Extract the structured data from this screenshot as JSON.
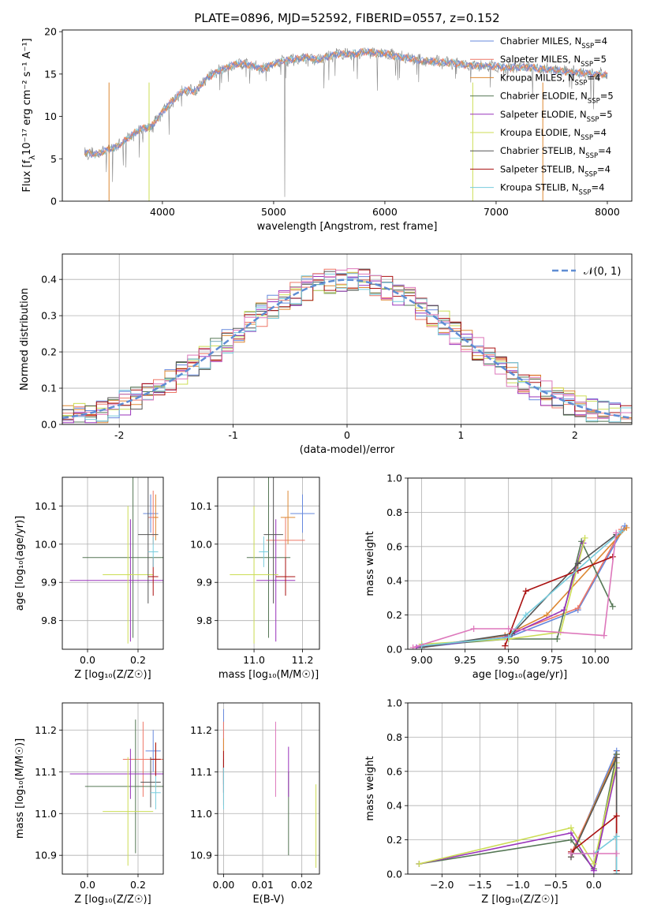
{
  "figure_title": "PLATE=0896, MJD=52592, FIBERID=0557, z=0.152",
  "models": [
    {
      "name": "Chabrier MILES, N",
      "sub": "SSP",
      "tail": "=4",
      "color": "#6688dd"
    },
    {
      "name": "Salpeter MILES, N",
      "sub": "SSP",
      "tail": "=5",
      "color": "#ee7766"
    },
    {
      "name": "Kroupa MILES, N",
      "sub": "SSP",
      "tail": "=4",
      "color": "#dd8833"
    },
    {
      "name": "Chabrier ELODIE, N",
      "sub": "SSP",
      "tail": "=5",
      "color": "#557755"
    },
    {
      "name": "Salpeter ELODIE, N",
      "sub": "SSP",
      "tail": "=5",
      "color": "#9933bb"
    },
    {
      "name": "Kroupa ELODIE, N",
      "sub": "SSP",
      "tail": "=4",
      "color": "#ccdd55"
    },
    {
      "name": "Chabrier STELIB, N",
      "sub": "SSP",
      "tail": "=4",
      "color": "#555555"
    },
    {
      "name": "Salpeter STELIB, N",
      "sub": "SSP",
      "tail": "=4",
      "color": "#aa1111"
    },
    {
      "name": "Kroupa STELIB, N",
      "sub": "SSP",
      "tail": "=4",
      "color": "#77ccdd"
    }
  ],
  "chart_data": [
    {
      "id": "spectrum",
      "type": "line",
      "xlabel": "wavelength [Angstrom, rest frame]",
      "ylabel_main": "Flux [f",
      "ylabel_sub": "λ",
      "ylabel_rest": "10⁻¹⁷ erg cm⁻² s⁻¹ A⁻¹]",
      "xlim": [
        3100,
        8220
      ],
      "ylim": [
        0,
        20.2
      ],
      "xticks": [
        4000,
        5000,
        6000,
        7000,
        8000
      ],
      "yticks": [
        0,
        5,
        10,
        15,
        20
      ],
      "continuum_x": [
        3300,
        3400,
        3500,
        3600,
        3700,
        3800,
        3900,
        4000,
        4100,
        4200,
        4300,
        4400,
        4500,
        4600,
        4700,
        4800,
        4900,
        5000,
        5100,
        5200,
        5300,
        5400,
        5500,
        5600,
        5700,
        5800,
        5900,
        6000,
        6100,
        6200,
        6300,
        6400,
        6500,
        6600,
        6700,
        6800,
        6900,
        7000,
        7100,
        7200,
        7300,
        7400,
        7500,
        7600,
        7700,
        7800,
        7900,
        8000
      ],
      "continuum_y": [
        5.8,
        5.5,
        6.0,
        6.5,
        7.5,
        8.5,
        8.8,
        10.5,
        12.0,
        13.2,
        13.0,
        14.5,
        15.3,
        15.9,
        16.3,
        16.0,
        15.6,
        16.2,
        16.6,
        16.8,
        17.0,
        16.6,
        17.1,
        17.4,
        17.3,
        17.6,
        17.5,
        17.4,
        17.1,
        16.9,
        16.6,
        16.5,
        16.4,
        16.3,
        16.1,
        16.0,
        16.0,
        15.9,
        15.7,
        15.8,
        15.8,
        15.6,
        15.5,
        15.3,
        15.2,
        15.1,
        15.0,
        14.9
      ]
    },
    {
      "id": "residual_hist",
      "type": "bar",
      "xlabel": "(data-model)/error",
      "ylabel": "Normed distribution",
      "xlim": [
        -2.5,
        2.5
      ],
      "ylim": [
        0,
        0.47
      ],
      "xticks": [
        -2,
        -1,
        0,
        1,
        2
      ],
      "yticks": [
        0.0,
        0.1,
        0.2,
        0.3,
        0.4
      ],
      "bin_width": 0.1,
      "legend_label": "𝒩(0, 1)",
      "gaussian_color": "#5f8dd3"
    },
    {
      "id": "age_vs_Z",
      "type": "scatter",
      "xlabel": "Z [log₁₀(Z/Z☉)]",
      "ylabel": "age  [log₁₀(age/yr)]",
      "xlim": [
        -0.1,
        0.3
      ],
      "ylim": [
        9.725,
        10.175
      ],
      "xticks": [
        0.0,
        0.2
      ],
      "yticks": [
        9.8,
        9.9,
        10.0,
        10.1
      ],
      "points": [
        {
          "x": 0.25,
          "y": 10.08,
          "xe": 0.03,
          "ye": 0.05
        },
        {
          "x": 0.26,
          "y": 10.07,
          "xe": 0.02,
          "ye": 0.07
        },
        {
          "x": 0.27,
          "y": 10.07,
          "xe": 0.01,
          "ye": 0.06
        },
        {
          "x": 0.18,
          "y": 9.965,
          "xe": 0.2,
          "ye": 0.21
        },
        {
          "x": 0.17,
          "y": 9.905,
          "xe": 0.24,
          "ye": 0.16
        },
        {
          "x": 0.16,
          "y": 9.92,
          "xe": 0.1,
          "ye": 0.18
        },
        {
          "x": 0.24,
          "y": 10.025,
          "xe": 0.04,
          "ye": 0.18
        },
        {
          "x": 0.26,
          "y": 9.915,
          "xe": 0.02,
          "ye": 0.05
        },
        {
          "x": 0.26,
          "y": 9.98,
          "xe": 0.02,
          "ye": 0.04
        }
      ]
    },
    {
      "id": "age_vs_mass",
      "type": "scatter",
      "xlabel": "mass [log₁₀(M/M☉)]",
      "ylabel": "",
      "xlim": [
        10.85,
        11.27
      ],
      "ylim": [
        9.725,
        10.175
      ],
      "xticks": [
        11.0,
        11.2
      ],
      "yticks": [
        9.8,
        9.9,
        10.0,
        10.1
      ],
      "points": [
        {
          "x": 11.2,
          "y": 10.08,
          "xe": 0.05,
          "ye": 0.05
        },
        {
          "x": 11.13,
          "y": 10.01,
          "xe": 0.08,
          "ye": 0.06
        },
        {
          "x": 11.14,
          "y": 10.07,
          "xe": 0.03,
          "ye": 0.07
        },
        {
          "x": 11.06,
          "y": 9.965,
          "xe": 0.09,
          "ye": 0.21
        },
        {
          "x": 11.09,
          "y": 9.905,
          "xe": 0.08,
          "ye": 0.16
        },
        {
          "x": 11.0,
          "y": 9.92,
          "xe": 0.1,
          "ye": 0.18
        },
        {
          "x": 11.08,
          "y": 10.025,
          "xe": 0.04,
          "ye": 0.18
        },
        {
          "x": 11.13,
          "y": 9.915,
          "xe": 0.04,
          "ye": 0.05
        },
        {
          "x": 11.04,
          "y": 9.98,
          "xe": 0.02,
          "ye": 0.04
        }
      ]
    },
    {
      "id": "weight_vs_age",
      "type": "line",
      "xlabel": "age  [log₁₀(age/yr)]",
      "ylabel": "mass weight",
      "xlim": [
        8.92,
        10.21
      ],
      "ylim": [
        0,
        1.0
      ],
      "xticks": [
        9.0,
        9.25,
        9.5,
        9.75,
        10.0
      ],
      "yticks": [
        0.0,
        0.2,
        0.4,
        0.6,
        0.8,
        1.0
      ],
      "series": [
        {
          "x": [
            9.0,
            9.5,
            9.9,
            10.17
          ],
          "y": [
            0.01,
            0.07,
            0.23,
            0.72
          ]
        },
        {
          "x": [
            9.0,
            9.48,
            9.9,
            10.15
          ],
          "y": [
            0.01,
            0.08,
            0.24,
            0.7
          ]
        },
        {
          "x": [
            9.0,
            9.48,
            9.72,
            10.18
          ],
          "y": [
            0.01,
            0.08,
            0.2,
            0.71
          ]
        },
        {
          "x": [
            9.0,
            9.5,
            9.78,
            9.92,
            10.1
          ],
          "y": [
            0.02,
            0.06,
            0.06,
            0.63,
            0.25
          ]
        },
        {
          "x": [
            8.97,
            9.48,
            9.82,
            9.93
          ],
          "y": [
            0.01,
            0.07,
            0.23,
            0.62
          ]
        },
        {
          "x": [
            9.0,
            9.5,
            9.8,
            9.94
          ],
          "y": [
            0.03,
            0.06,
            0.1,
            0.65
          ]
        },
        {
          "x": [
            9.0,
            9.52,
            9.9,
            10.12
          ],
          "y": [
            0.01,
            0.09,
            0.5,
            0.67
          ]
        },
        {
          "x": [
            9.48,
            9.6,
            9.9,
            10.1
          ],
          "y": [
            0.02,
            0.34,
            0.46,
            0.54
          ]
        },
        {
          "x": [
            9.0,
            9.5,
            9.6,
            10.15
          ],
          "y": [
            0.02,
            0.07,
            0.2,
            0.69
          ]
        },
        {
          "x": [
            8.95,
            9.3,
            9.5,
            10.05,
            10.12
          ],
          "y": [
            0.01,
            0.12,
            0.12,
            0.08,
            0.68
          ]
        }
      ]
    },
    {
      "id": "mass_vs_Z",
      "type": "scatter",
      "xlabel": "Z [log₁₀(Z/Z☉)]",
      "ylabel": "mass [log₁₀(M/M☉)]",
      "xlim": [
        -0.1,
        0.3
      ],
      "ylim": [
        10.855,
        11.265
      ],
      "xticks": [
        0.0,
        0.2
      ],
      "yticks": [
        10.9,
        11.0,
        11.1,
        11.2
      ],
      "points": [
        {
          "x": 0.26,
          "y": 11.15,
          "xe": 0.03,
          "ye": 0.05
        },
        {
          "x": 0.22,
          "y": 11.13,
          "xe": 0.08,
          "ye": 0.09
        },
        {
          "x": 0.27,
          "y": 11.13,
          "xe": 0.02,
          "ye": 0.04
        },
        {
          "x": 0.19,
          "y": 11.065,
          "xe": 0.2,
          "ye": 0.16
        },
        {
          "x": 0.17,
          "y": 11.095,
          "xe": 0.24,
          "ye": 0.06
        },
        {
          "x": 0.16,
          "y": 11.005,
          "xe": 0.1,
          "ye": 0.13
        },
        {
          "x": 0.25,
          "y": 11.075,
          "xe": 0.04,
          "ye": 0.06
        },
        {
          "x": 0.27,
          "y": 11.13,
          "xe": 0.02,
          "ye": 0.04
        },
        {
          "x": 0.27,
          "y": 11.05,
          "xe": 0.02,
          "ye": 0.04
        }
      ]
    },
    {
      "id": "mass_vs_ebv",
      "type": "scatter",
      "xlabel": "E(B-V)",
      "ylabel": "",
      "xlim": [
        -0.0015,
        0.0245
      ],
      "ylim": [
        10.855,
        11.265
      ],
      "xticks": [
        0.0,
        0.01,
        0.02
      ],
      "yticks": [
        10.9,
        11.0,
        11.1,
        11.2
      ],
      "points": [
        {
          "x": 0.0,
          "y": 11.15,
          "xe": 0,
          "ye": 0.1
        },
        {
          "x": 0.0,
          "y": 11.12,
          "xe": 0,
          "ye": 0.1
        },
        {
          "x": 0.0,
          "y": 11.13,
          "xe": 0,
          "ye": 0.05
        },
        {
          "x": 0.0166,
          "y": 11.0,
          "xe": 0,
          "ye": 0.1
        },
        {
          "x": 0.0166,
          "y": 11.1,
          "xe": 0,
          "ye": 0.06
        },
        {
          "x": 0.0236,
          "y": 10.97,
          "xe": 0,
          "ye": 0.1
        },
        {
          "x": 0.0,
          "y": 11.1,
          "xe": 0,
          "ye": 0.03
        },
        {
          "x": 0.0,
          "y": 11.1,
          "xe": 0,
          "ye": 0.05
        },
        {
          "x": 0.0,
          "y": 11.06,
          "xe": 0,
          "ye": 0.05
        },
        {
          "x": 0.0133,
          "y": 11.13,
          "xe": 0,
          "ye": 0.09
        }
      ]
    },
    {
      "id": "weight_vs_Z",
      "type": "line",
      "xlabel": "Z [log₁₀(Z/Z☉)]",
      "ylabel": "mass weight",
      "xlim": [
        -2.45,
        0.5
      ],
      "ylim": [
        0,
        1.0
      ],
      "xticks": [
        -2.0,
        -1.5,
        -1.0,
        -0.5,
        0.0
      ],
      "yticks": [
        0.0,
        0.2,
        0.4,
        0.6,
        0.8,
        1.0
      ],
      "series": [
        {
          "x": [
            -0.3,
            0.3,
            0.3
          ],
          "y": [
            0.1,
            0.72,
            0.0
          ]
        },
        {
          "x": [
            -0.3,
            0.3,
            0.3
          ],
          "y": [
            0.12,
            0.68,
            0.0
          ]
        },
        {
          "x": [
            -0.3,
            0.3,
            0.3
          ],
          "y": [
            0.1,
            0.7,
            0.0
          ]
        },
        {
          "x": [
            -2.3,
            -0.3,
            0.0,
            0.3
          ],
          "y": [
            0.06,
            0.2,
            0.03,
            0.7
          ]
        },
        {
          "x": [
            -2.3,
            -0.3,
            0.0,
            0.3
          ],
          "y": [
            0.06,
            0.24,
            0.02,
            0.62
          ]
        },
        {
          "x": [
            -2.3,
            -0.3,
            0.0,
            0.3
          ],
          "y": [
            0.06,
            0.27,
            0.06,
            0.65
          ]
        },
        {
          "x": [
            -0.3,
            0.3,
            0.3
          ],
          "y": [
            0.1,
            0.68,
            0.0
          ]
        },
        {
          "x": [
            -0.3,
            0.3,
            0.3
          ],
          "y": [
            0.13,
            0.34,
            0.02
          ]
        },
        {
          "x": [
            -0.3,
            0.0,
            0.3,
            0.3
          ],
          "y": [
            0.12,
            0.12,
            0.22,
            0.0
          ]
        },
        {
          "x": [
            -0.3,
            0.0,
            0.3
          ],
          "y": [
            0.12,
            0.12,
            0.12
          ]
        }
      ]
    }
  ]
}
